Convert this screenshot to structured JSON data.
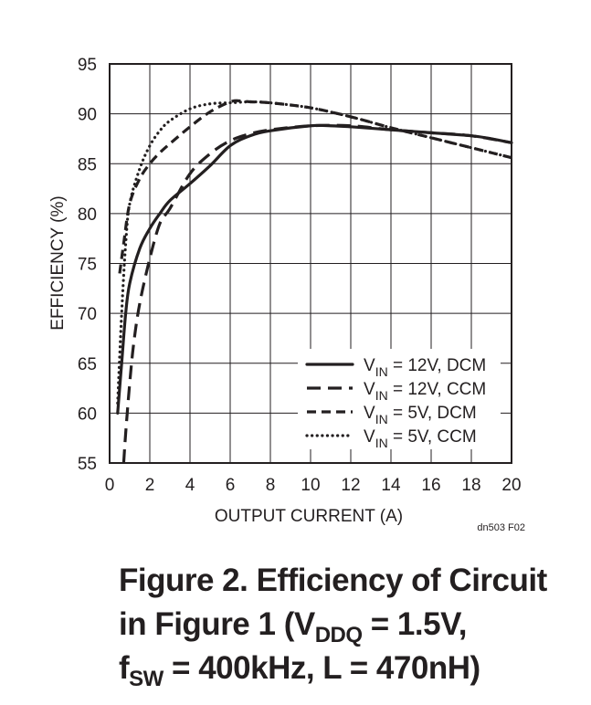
{
  "chart_data": {
    "type": "line",
    "xlabel": "OUTPUT CURRENT (A)",
    "ylabel": "EFFICIENCY (%)",
    "xlim": [
      0,
      20
    ],
    "ylim": [
      55,
      95
    ],
    "xticks": [
      "0",
      "2",
      "4",
      "6",
      "8",
      "10",
      "12",
      "14",
      "16",
      "18",
      "20"
    ],
    "yticks": [
      "95",
      "90",
      "85",
      "80",
      "75",
      "70",
      "65",
      "60",
      "55"
    ],
    "grid": true,
    "legend_position": "bottom-right",
    "series": [
      {
        "name": "VIN = 12V, DCM",
        "style": "solid",
        "x": [
          0.4,
          0.6,
          0.8,
          1.0,
          1.5,
          2.0,
          2.5,
          3.0,
          4.0,
          5.0,
          6.0,
          7.0,
          8.0,
          10.0,
          11.0,
          12.0,
          14.0,
          16.0,
          18.0,
          19.0,
          20.0
        ],
        "y": [
          60,
          65,
          70,
          73,
          76.5,
          78.5,
          80,
          81.3,
          83,
          84.8,
          86.8,
          87.8,
          88.3,
          88.8,
          88.8,
          88.7,
          88.4,
          88.1,
          87.8,
          87.5,
          87.1
        ]
      },
      {
        "name": "VIN = 12V, CCM",
        "style": "long-dash",
        "x": [
          0.7,
          0.8,
          1.0,
          1.2,
          1.5,
          2.0,
          2.5,
          3.0,
          4.0,
          5.0,
          6.0,
          7.0,
          8.0,
          10.0,
          12.0,
          14.0,
          16.0,
          18.0,
          20.0
        ],
        "y": [
          55,
          58,
          63,
          67,
          71,
          75.5,
          79,
          80.5,
          84,
          86,
          87.3,
          88,
          88.4,
          88.8,
          88.8,
          88.4,
          88.1,
          87.8,
          87.1
        ]
      },
      {
        "name": "VIN = 5V, DCM",
        "style": "short-dash",
        "x": [
          0.5,
          0.7,
          1.0,
          1.5,
          2.0,
          2.5,
          3.0,
          4.0,
          5.0,
          6.0,
          6.5,
          7.0,
          8.0,
          10.0,
          12.0,
          14.0,
          16.0,
          18.0,
          20.0
        ],
        "y": [
          74,
          77,
          81,
          83.5,
          85,
          86.1,
          87,
          88.7,
          90.2,
          91.2,
          91.3,
          91.2,
          91.1,
          90.6,
          89.7,
          88.6,
          87.6,
          86.6,
          85.6
        ]
      },
      {
        "name": "VIN = 5V, CCM",
        "style": "dotted",
        "x": [
          0.4,
          0.6,
          0.8,
          1.0,
          1.5,
          2.0,
          2.5,
          3.0,
          4.0,
          5.0,
          6.0,
          7.0,
          8.0,
          10.0,
          12.0,
          14.0,
          16.0,
          18.0,
          20.0
        ],
        "y": [
          61,
          70,
          77,
          81,
          84.5,
          86.8,
          88.3,
          89.3,
          90.5,
          91,
          91.1,
          91.2,
          91.1,
          90.6,
          89.7,
          88.6,
          87.6,
          86.6,
          85.6
        ]
      }
    ],
    "legend": [
      {
        "main": "V",
        "sub": "IN",
        "rest": " = 12V, DCM",
        "style": "solid"
      },
      {
        "main": "V",
        "sub": "IN",
        "rest": " = 12V, CCM",
        "style": "long-dash"
      },
      {
        "main": "V",
        "sub": "IN",
        "rest": " = 5V, DCM",
        "style": "short-dash"
      },
      {
        "main": "V",
        "sub": "IN",
        "rest": " = 5V, CCM",
        "style": "dotted"
      }
    ],
    "figure_id": "dn503 F02"
  },
  "caption": {
    "line1": "Figure 2. Efficiency of Circuit",
    "line2_pre": "in Figure 1 (V",
    "line2_sub": "DDQ",
    "line2_post": " = 1.5V,",
    "line3_pre": "f",
    "line3_sub": "SW",
    "line3_post": " = 400kHz, L = 470nH)"
  },
  "colors": {
    "ink": "#231f20",
    "grid": "#231f20",
    "background": "#ffffff"
  }
}
